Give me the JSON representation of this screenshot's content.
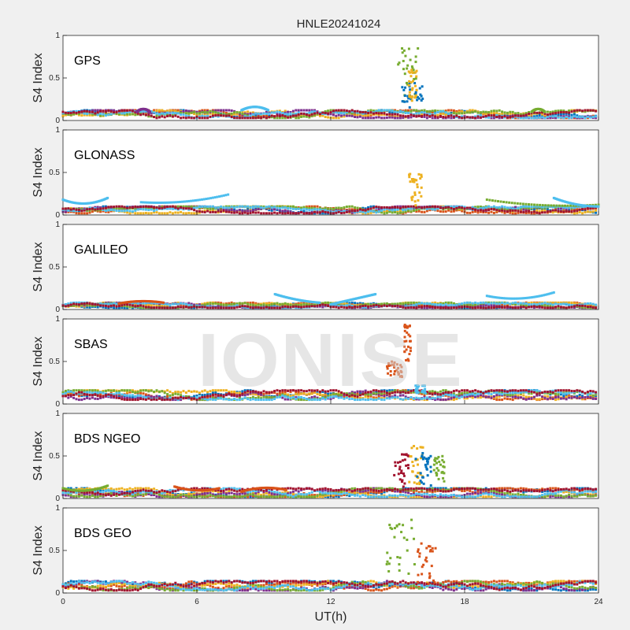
{
  "figure": {
    "title": "HNLE20241024",
    "watermark": "IONISE",
    "xlabel": "UT(h)",
    "ylabel": "S4 Index"
  },
  "chart_data": {
    "type": "scatter",
    "title": "HNLE20241024",
    "xlabel": "UT(h)",
    "ylabel": "S4 Index",
    "xlim": [
      0,
      24
    ],
    "ylim": [
      0,
      1
    ],
    "xticks": [
      0,
      6,
      12,
      18,
      24
    ],
    "xtick_labels": [
      "0",
      "6",
      "12",
      "18",
      "24"
    ],
    "yticks": [
      0,
      0.5,
      1
    ],
    "ytick_labels": [
      "0",
      "0.5",
      "1"
    ],
    "grid": false,
    "palette": [
      "#0072BD",
      "#D95319",
      "#EDB120",
      "#7E2F8E",
      "#77AC30",
      "#4DBEEE",
      "#A2142F"
    ],
    "panels": [
      {
        "label": "GPS",
        "baseline": [
          0.03,
          0.12
        ],
        "arcs": [
          {
            "x": [
              8.0,
              8.6,
              9.2
            ],
            "y": [
              0.12,
              0.2,
              0.12
            ],
            "color": "#4DBEEE"
          },
          {
            "x": [
              3.3,
              3.6,
              3.9
            ],
            "y": [
              0.1,
              0.17,
              0.1
            ],
            "color": "#7E2F8E"
          },
          {
            "x": [
              21.0,
              21.3,
              21.6
            ],
            "y": [
              0.1,
              0.17,
              0.1
            ],
            "color": "#77AC30"
          }
        ],
        "bursts": [
          {
            "x": [
              15.0,
              16.0
            ],
            "y": [
              0.2,
              0.85
            ],
            "color": "#77AC30"
          },
          {
            "x": [
              15.2,
              16.2
            ],
            "y": [
              0.15,
              0.45
            ],
            "color": "#0072BD"
          },
          {
            "x": [
              15.5,
              15.9
            ],
            "y": [
              0.2,
              0.6
            ],
            "color": "#EDB120"
          }
        ]
      },
      {
        "label": "GLONASS",
        "baseline": [
          0.02,
          0.1
        ],
        "arcs": [
          {
            "x": [
              0.0,
              1.0,
              2.0
            ],
            "y": [
              0.18,
              0.08,
              0.2
            ],
            "color": "#4DBEEE"
          },
          {
            "x": [
              3.5,
              5.5,
              7.4
            ],
            "y": [
              0.15,
              0.12,
              0.24
            ],
            "color": "#4DBEEE"
          },
          {
            "x": [
              19.0,
              21.5,
              24.0
            ],
            "y": [
              0.18,
              0.08,
              0.12
            ],
            "color": "#77AC30"
          },
          {
            "x": [
              22.0,
              23.0,
              24.0
            ],
            "y": [
              0.2,
              0.1,
              0.1
            ],
            "color": "#4DBEEE"
          }
        ],
        "bursts": [
          {
            "x": [
              15.5,
              16.1
            ],
            "y": [
              0.1,
              0.5
            ],
            "color": "#EDB120"
          }
        ]
      },
      {
        "label": "GALILEO",
        "baseline": [
          0.02,
          0.08
        ],
        "arcs": [
          {
            "x": [
              9.5,
              10.5,
              11.5
            ],
            "y": [
              0.18,
              0.1,
              0.08
            ],
            "color": "#4DBEEE"
          },
          {
            "x": [
              12.0,
              13.0,
              14.0
            ],
            "y": [
              0.06,
              0.12,
              0.18
            ],
            "color": "#4DBEEE"
          },
          {
            "x": [
              19.0,
              20.5,
              22.0
            ],
            "y": [
              0.16,
              0.08,
              0.2
            ],
            "color": "#4DBEEE"
          },
          {
            "x": [
              2.5,
              3.5,
              4.5
            ],
            "y": [
              0.07,
              0.12,
              0.08
            ],
            "color": "#D95319"
          }
        ],
        "bursts": []
      },
      {
        "label": "SBAS",
        "baseline": [
          0.05,
          0.16
        ],
        "arcs": [],
        "bursts": [
          {
            "x": [
              14.5,
              15.2
            ],
            "y": [
              0.3,
              0.5
            ],
            "color": "#D95319"
          },
          {
            "x": [
              15.3,
              15.6
            ],
            "y": [
              0.5,
              0.95
            ],
            "color": "#D95319"
          },
          {
            "x": [
              15.8,
              16.3
            ],
            "y": [
              0.12,
              0.22
            ],
            "color": "#4DBEEE"
          }
        ]
      },
      {
        "label": "BDS NGEO",
        "baseline": [
          0.02,
          0.12
        ],
        "arcs": [
          {
            "x": [
              0.0,
              1.0,
              2.0
            ],
            "y": [
              0.12,
              0.05,
              0.15
            ],
            "color": "#77AC30"
          },
          {
            "x": [
              5.0,
              6.0,
              7.0
            ],
            "y": [
              0.14,
              0.06,
              0.12
            ],
            "color": "#D95319"
          },
          {
            "x": [
              8.0,
              9.0,
              10.0
            ],
            "y": [
              0.08,
              0.16,
              0.1
            ],
            "color": "#D95319"
          }
        ],
        "bursts": [
          {
            "x": [
              14.8,
              15.5
            ],
            "y": [
              0.1,
              0.52
            ],
            "color": "#A2142F"
          },
          {
            "x": [
              15.5,
              16.2
            ],
            "y": [
              0.15,
              0.62
            ],
            "color": "#EDB120"
          },
          {
            "x": [
              15.8,
              16.5
            ],
            "y": [
              0.15,
              0.55
            ],
            "color": "#0072BD"
          },
          {
            "x": [
              16.6,
              17.1
            ],
            "y": [
              0.2,
              0.5
            ],
            "color": "#77AC30"
          }
        ]
      },
      {
        "label": "BDS GEO",
        "baseline": [
          0.03,
          0.14
        ],
        "arcs": [],
        "bursts": [
          {
            "x": [
              14.5,
              15.8
            ],
            "y": [
              0.15,
              0.88
            ],
            "color": "#77AC30"
          },
          {
            "x": [
              15.9,
              16.7
            ],
            "y": [
              0.1,
              0.6
            ],
            "color": "#D95319"
          }
        ]
      }
    ]
  }
}
